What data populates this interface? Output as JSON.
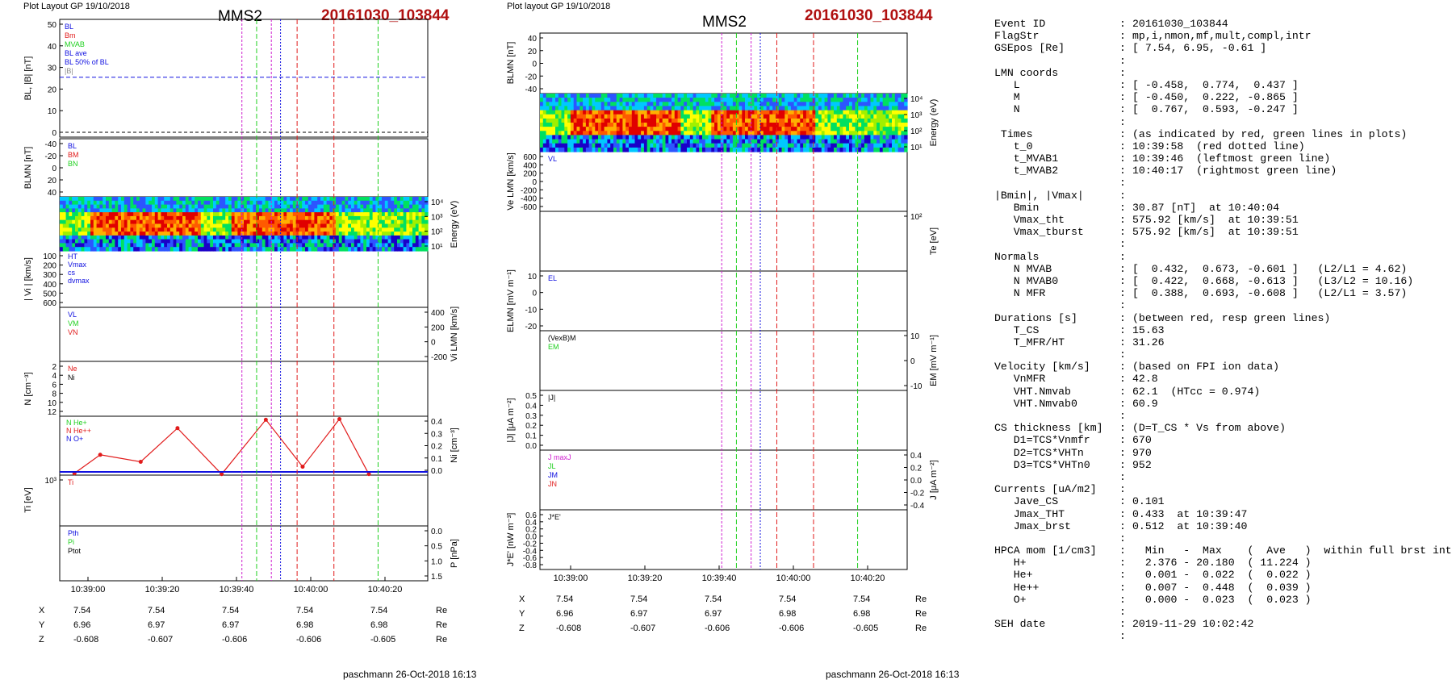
{
  "headers": {
    "left_title": "Plot Layout GP 19/10/2018",
    "mid_title": "Plot layout GP 19/10/2018",
    "spacecraft": "MMS2",
    "event": "20161030_103844"
  },
  "time_axis": {
    "ticks": [
      "10:39:00",
      "10:39:20",
      "10:39:40",
      "10:40:00",
      "10:40:20"
    ]
  },
  "position_table": {
    "unit": "Re",
    "rows": [
      {
        "label": "X",
        "values": [
          "7.54",
          "7.54",
          "7.54",
          "7.54",
          "7.54"
        ]
      },
      {
        "label": "Y",
        "values": [
          "6.96",
          "6.97",
          "6.97",
          "6.98",
          "6.98"
        ]
      },
      {
        "label": "Z",
        "values": [
          "-0.608",
          "-0.607",
          "-0.606",
          "-0.606",
          "-0.605"
        ]
      }
    ]
  },
  "footer": "paschmann 26-Oct-2018 16:13",
  "colors": {
    "red": "#e11b1b",
    "green": "#1fd01f",
    "blue": "#1010e0",
    "magenta": "#d020d0",
    "gray": "#8c8c8c",
    "event_red": "#b01010"
  },
  "chart_data": [
    {
      "type": "line",
      "panel": "left",
      "ylabel": "BL, |B| [nT]",
      "ylim": [
        0,
        57
      ],
      "yticks": [
        "0",
        "10",
        "20",
        "30",
        "40",
        "50"
      ],
      "legend": [
        "BL",
        "Bm",
        "MVAB",
        "BL ave",
        "BL 50% of BL",
        "|B|"
      ],
      "series": [
        {
          "name": "BL",
          "color": "blue"
        },
        {
          "name": "|B|",
          "color": "gray"
        }
      ],
      "reference_level": 29
    },
    {
      "type": "line",
      "panel": "left",
      "ylabel": "BLMN [nT]",
      "ylim": [
        -45,
        45
      ],
      "yticks": [
        "-40",
        "-20",
        "0",
        "20",
        "40"
      ],
      "series": [
        {
          "name": "BL"
        },
        {
          "name": "BM"
        },
        {
          "name": "BN"
        }
      ]
    },
    {
      "type": "heatmap",
      "panel": "left",
      "ylabel": "Energy (eV)",
      "yticks": [
        "10⁴",
        "10³",
        "10²",
        "10¹"
      ]
    },
    {
      "type": "line",
      "panel": "left",
      "ylabel": "| Vi | [km/s]",
      "ylim": [
        80,
        600
      ],
      "yticks": [
        "100",
        "200",
        "300",
        "400",
        "500",
        "600"
      ],
      "legend": [
        "HT",
        "Vmax",
        "cs",
        "dvmax"
      ]
    },
    {
      "type": "line",
      "panel": "left",
      "ylabel": "Vi LMN [km/s]",
      "ylim": [
        -200,
        400
      ],
      "yticks": [
        "400",
        "200",
        "0",
        "-200"
      ],
      "series": [
        {
          "name": "VL"
        },
        {
          "name": "VM"
        },
        {
          "name": "VN"
        }
      ]
    },
    {
      "type": "line",
      "panel": "left",
      "ylabel": "N [cm⁻³]",
      "ylim": [
        0,
        12
      ],
      "yticks": [
        "2",
        "4",
        "6",
        "8",
        "10",
        "12"
      ],
      "series": [
        {
          "name": "Ne"
        },
        {
          "name": "Ni"
        }
      ]
    },
    {
      "type": "line",
      "panel": "left",
      "ylabel": "Ni [cm⁻³]",
      "ylim": [
        0,
        0.42
      ],
      "yticks": [
        "0.0",
        "0.1",
        "0.2",
        "0.3",
        "0.4"
      ],
      "legend": [
        "N He+",
        "N He++",
        "N O+"
      ],
      "series": [
        {
          "name": "N He++",
          "color": "red",
          "x": [
            "10:38:50",
            "10:38:57",
            "10:39:08",
            "10:39:18",
            "10:39:30",
            "10:39:42",
            "10:39:52",
            "10:40:02",
            "10:40:10"
          ],
          "values": [
            0.013,
            0.145,
            0.095,
            0.335,
            0.007,
            0.395,
            0.06,
            0.4,
            0.007
          ]
        }
      ]
    },
    {
      "type": "line",
      "panel": "left",
      "ylabel": "Ti [eV]",
      "yticks": [
        "10³"
      ],
      "series": [
        {
          "name": "Ti"
        }
      ]
    },
    {
      "type": "line",
      "panel": "left",
      "ylabel": "P [nPa]",
      "ylim": [
        0,
        1.7
      ],
      "yticks": [
        "0.0",
        "0.5",
        "1.0",
        "1.5"
      ],
      "series": [
        {
          "name": "Pth"
        },
        {
          "name": "Pi"
        },
        {
          "name": "Ptot"
        }
      ]
    },
    {
      "type": "line",
      "panel": "mid",
      "ylabel": "BLMN [nT]",
      "ylim": [
        -45,
        45
      ],
      "yticks": [
        "40",
        "20",
        "0",
        "-20",
        "-40"
      ]
    },
    {
      "type": "heatmap",
      "panel": "mid",
      "ylabel": "Energy (eV)",
      "yticks": [
        "10⁴",
        "10³",
        "10²",
        "10¹"
      ]
    },
    {
      "type": "line",
      "panel": "mid",
      "ylabel": "Ve LMN [km/s]",
      "ylim": [
        -650,
        650
      ],
      "yticks": [
        "600",
        "400",
        "200",
        "0",
        "-200",
        "-400",
        "-600"
      ],
      "series": [
        {
          "name": "VL"
        }
      ]
    },
    {
      "type": "line",
      "panel": "mid",
      "ylabel": "Te [eV]",
      "yticks": [
        "10²"
      ]
    },
    {
      "type": "line",
      "panel": "mid",
      "ylabel": "ELMN [mV m⁻¹]",
      "ylim": [
        -25,
        12
      ],
      "yticks": [
        "10",
        "0",
        "-10",
        "-20"
      ],
      "series": [
        {
          "name": "EL"
        }
      ]
    },
    {
      "type": "line",
      "panel": "mid",
      "ylabel": "EM [mV m⁻¹]",
      "ylim": [
        -14,
        14
      ],
      "yticks": [
        "10",
        "0",
        "-10"
      ],
      "series": [
        {
          "name": "(VexB)M"
        },
        {
          "name": "EM"
        }
      ]
    },
    {
      "type": "line",
      "panel": "mid",
      "ylabel": "|J| [μA m⁻²]",
      "ylim": [
        0,
        0.5
      ],
      "yticks": [
        "0.5",
        "0.4",
        "0.3",
        "0.2",
        "0.1",
        "0.0"
      ],
      "series": [
        {
          "name": "|J|"
        }
      ]
    },
    {
      "type": "line",
      "panel": "mid",
      "ylabel": "J [μA m⁻²]",
      "ylim": [
        -0.45,
        0.45
      ],
      "yticks": [
        "0.4",
        "0.2",
        "0.0",
        "-0.2",
        "-0.4"
      ],
      "series": [
        {
          "name": "J maxJ"
        },
        {
          "name": "JL"
        },
        {
          "name": "JM"
        },
        {
          "name": "JN"
        }
      ]
    },
    {
      "type": "line",
      "panel": "mid",
      "ylabel": "J*E' [nW m⁻³]",
      "ylim": [
        -0.8,
        0.6
      ],
      "yticks": [
        "0.6",
        "0.4",
        "0.2",
        "0.0",
        "-0.2",
        "-0.4",
        "-0.6",
        "-0.8"
      ],
      "series": [
        {
          "name": "J*E'"
        }
      ]
    }
  ],
  "info": [
    [
      "Event ID",
      ":",
      "20161030_103844"
    ],
    [
      "FlagStr",
      ":",
      "mp,i,nmon,mf,mult,compl,intr"
    ],
    [
      "GSEpos [Re]",
      ":",
      "[ 7.54, 6.95, -0.61 ]"
    ],
    [
      "",
      ":",
      ""
    ],
    [
      "LMN coords",
      ":",
      ""
    ],
    [
      "   L",
      ":",
      "[ -0.458,  0.774,  0.437 ]"
    ],
    [
      "   M",
      ":",
      "[ -0.450,  0.222, -0.865 ]"
    ],
    [
      "   N",
      ":",
      "[  0.767,  0.593, -0.247 ]"
    ],
    [
      "",
      ":",
      ""
    ],
    [
      " Times",
      ":",
      "(as indicated by red, green lines in plots)"
    ],
    [
      "   t_0",
      ":",
      "10:39:58  (red dotted line)"
    ],
    [
      "   t_MVAB1",
      ":",
      "10:39:46  (leftmost green line)"
    ],
    [
      "   t_MVAB2",
      ":",
      "10:40:17  (rightmost green line)"
    ],
    [
      "",
      ":",
      ""
    ],
    [
      "|Bmin|, |Vmax|",
      ":",
      ""
    ],
    [
      "   Bmin",
      ":",
      "30.87 [nT]  at 10:40:04"
    ],
    [
      "   Vmax_tht",
      ":",
      "575.92 [km/s]  at 10:39:51"
    ],
    [
      "   Vmax_tburst",
      ":",
      "575.92 [km/s]  at 10:39:51"
    ],
    [
      "",
      ":",
      ""
    ],
    [
      "Normals",
      ":",
      ""
    ],
    [
      "   N MVAB",
      ":",
      "[  0.432,  0.673, -0.601 ]   (L2/L1 = 4.62)"
    ],
    [
      "   N MVAB0",
      ":",
      "[  0.422,  0.668, -0.613 ]   (L3/L2 = 10.16)"
    ],
    [
      "   N MFR",
      ":",
      "[  0.388,  0.693, -0.608 ]   (L2/L1 = 3.57)"
    ],
    [
      "",
      ":",
      ""
    ],
    [
      "Durations [s]",
      ":",
      "(between red, resp green lines)"
    ],
    [
      "   T_CS",
      ":",
      "15.63"
    ],
    [
      "   T_MFR/HT",
      ":",
      "31.26"
    ],
    [
      "",
      ":",
      ""
    ],
    [
      "Velocity [km/s]",
      ":",
      "(based on FPI ion data)"
    ],
    [
      "   VnMFR",
      ":",
      "42.8"
    ],
    [
      "   VHT.Nmvab",
      ":",
      "62.1  (HTcc = 0.974)"
    ],
    [
      "   VHT.Nmvab0",
      ":",
      "60.9"
    ],
    [
      "",
      ":",
      ""
    ],
    [
      "CS thickness [km]",
      ":",
      "(D=T_CS * Vs from above)"
    ],
    [
      "   D1=TCS*Vnmfr",
      ":",
      "670"
    ],
    [
      "   D2=TCS*VHTn",
      ":",
      "970"
    ],
    [
      "   D3=TCS*VHTn0",
      ":",
      "952"
    ],
    [
      "",
      ":",
      ""
    ],
    [
      "Currents [uA/m2]",
      ":",
      ""
    ],
    [
      "   Jave_CS",
      ":",
      "0.101"
    ],
    [
      "   Jmax_THT",
      ":",
      "0.433  at 10:39:47"
    ],
    [
      "   Jmax_brst",
      ":",
      "0.512  at 10:39:40"
    ],
    [
      "",
      ":",
      ""
    ],
    [
      "HPCA mom [1/cm3]",
      ":",
      "  Min   -  Max    (  Ave   )  within full brst int"
    ],
    [
      "   H+",
      ":",
      "  2.376 - 20.180  ( 11.224 )"
    ],
    [
      "   He+",
      ":",
      "  0.001 -  0.022  (  0.022 )"
    ],
    [
      "   He++",
      ":",
      "  0.007 -  0.448  (  0.039 )"
    ],
    [
      "   O+",
      ":",
      "  0.000 -  0.023  (  0.023 )"
    ],
    [
      "",
      ":",
      ""
    ],
    [
      "SEH date",
      ":",
      "2019-11-29 10:02:42"
    ],
    [
      "",
      ":",
      ""
    ]
  ]
}
